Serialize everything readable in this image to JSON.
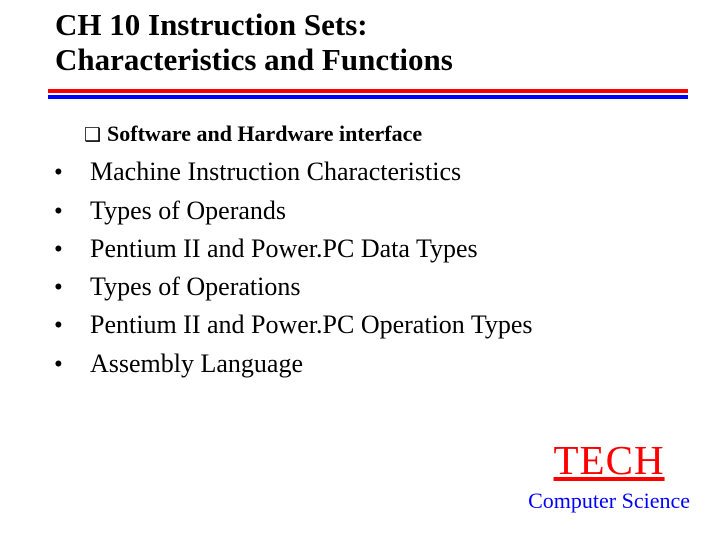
{
  "title_line1": "CH 10 Instruction Sets:",
  "title_line2": "Characteristics and Functions",
  "divider": {
    "top_color": "#ff0000",
    "bottom_color": "#0000ff"
  },
  "subhead_bullet_glyph": "❑",
  "subhead": "Software and Hardware interface",
  "bullets": {
    "dot": "•",
    "items": [
      "Machine Instruction Characteristics",
      "Types of Operands",
      "Pentium II and Power.PC Data Types",
      "Types of Operations",
      "Pentium II and Power.PC Operation Types",
      "Assembly Language"
    ]
  },
  "badge": {
    "title": "TECH",
    "subtitle": "Computer Science",
    "title_color": "#ff0000",
    "subtitle_color": "#0000ff"
  },
  "colors": {
    "background": "#ffffff",
    "text": "#000000"
  },
  "fonts": {
    "title_size": 31,
    "subhead_size": 22,
    "bullet_size": 26,
    "badge_title_size": 41,
    "badge_sub_size": 22
  }
}
